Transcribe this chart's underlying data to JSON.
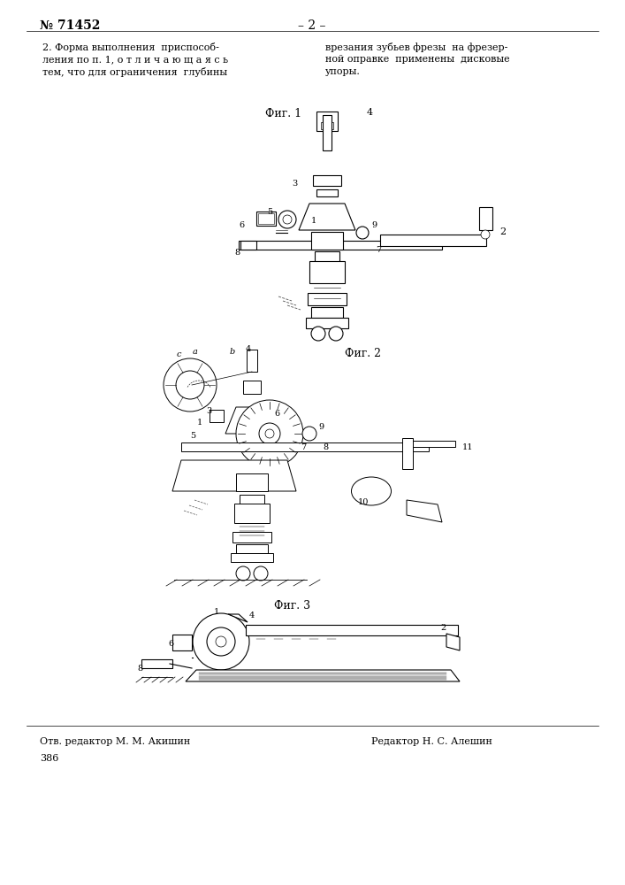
{
  "page_number_left": "№ 71452",
  "page_number_center": "– 2 –",
  "background_color": "#ffffff",
  "text_color": "#000000",
  "text_col1_lines": [
    "2. Форма выполнения  приспособ-",
    "ления по п. 1, о т л и ч а ю щ а я с ь",
    "тем, что для ограничения  глубины"
  ],
  "text_col2_lines": [
    "врезания зубьев фрезы  на фрезер-",
    "ной оправке  применены  дисковые",
    "упоры."
  ],
  "fig1_label": "Фиг. 1",
  "fig2_label": "Фиг. 2",
  "fig3_label": "Фиг. 3",
  "footer_left": "Отв. редактор М. М. Акишин",
  "footer_right": "Редактор Н. С. Алешин",
  "footer_page": "386"
}
